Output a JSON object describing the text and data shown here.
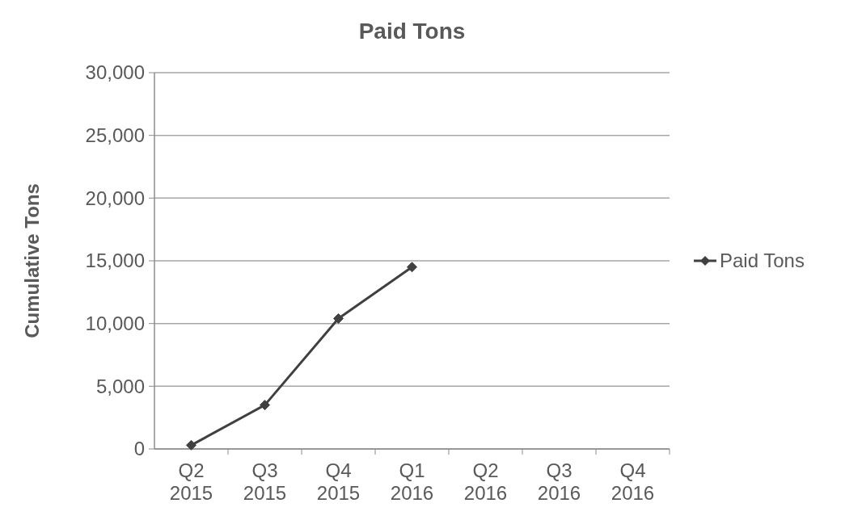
{
  "chart_data": {
    "type": "line",
    "title": "Paid Tons",
    "ylabel": "Cumulative Tons",
    "categories": [
      "Q2\n2015",
      "Q3\n2015",
      "Q4\n2015",
      "Q1\n2016",
      "Q2\n2016",
      "Q3\n2016",
      "Q4\n2016"
    ],
    "series": [
      {
        "name": "Paid Tons",
        "color": "#404040",
        "values": [
          300,
          3500,
          10400,
          14500,
          null,
          null,
          null
        ]
      }
    ],
    "ylim": [
      0,
      30000
    ],
    "yticks": [
      {
        "value": 0,
        "label": "0"
      },
      {
        "value": 5000,
        "label": "5,000"
      },
      {
        "value": 10000,
        "label": "10,000"
      },
      {
        "value": 15000,
        "label": "15,000"
      },
      {
        "value": 20000,
        "label": "20,000"
      },
      {
        "value": 25000,
        "label": "25,000"
      },
      {
        "value": 30000,
        "label": "30,000"
      }
    ],
    "grid": "y",
    "legend": "right",
    "marker": "diamond",
    "line_style": "solid"
  }
}
